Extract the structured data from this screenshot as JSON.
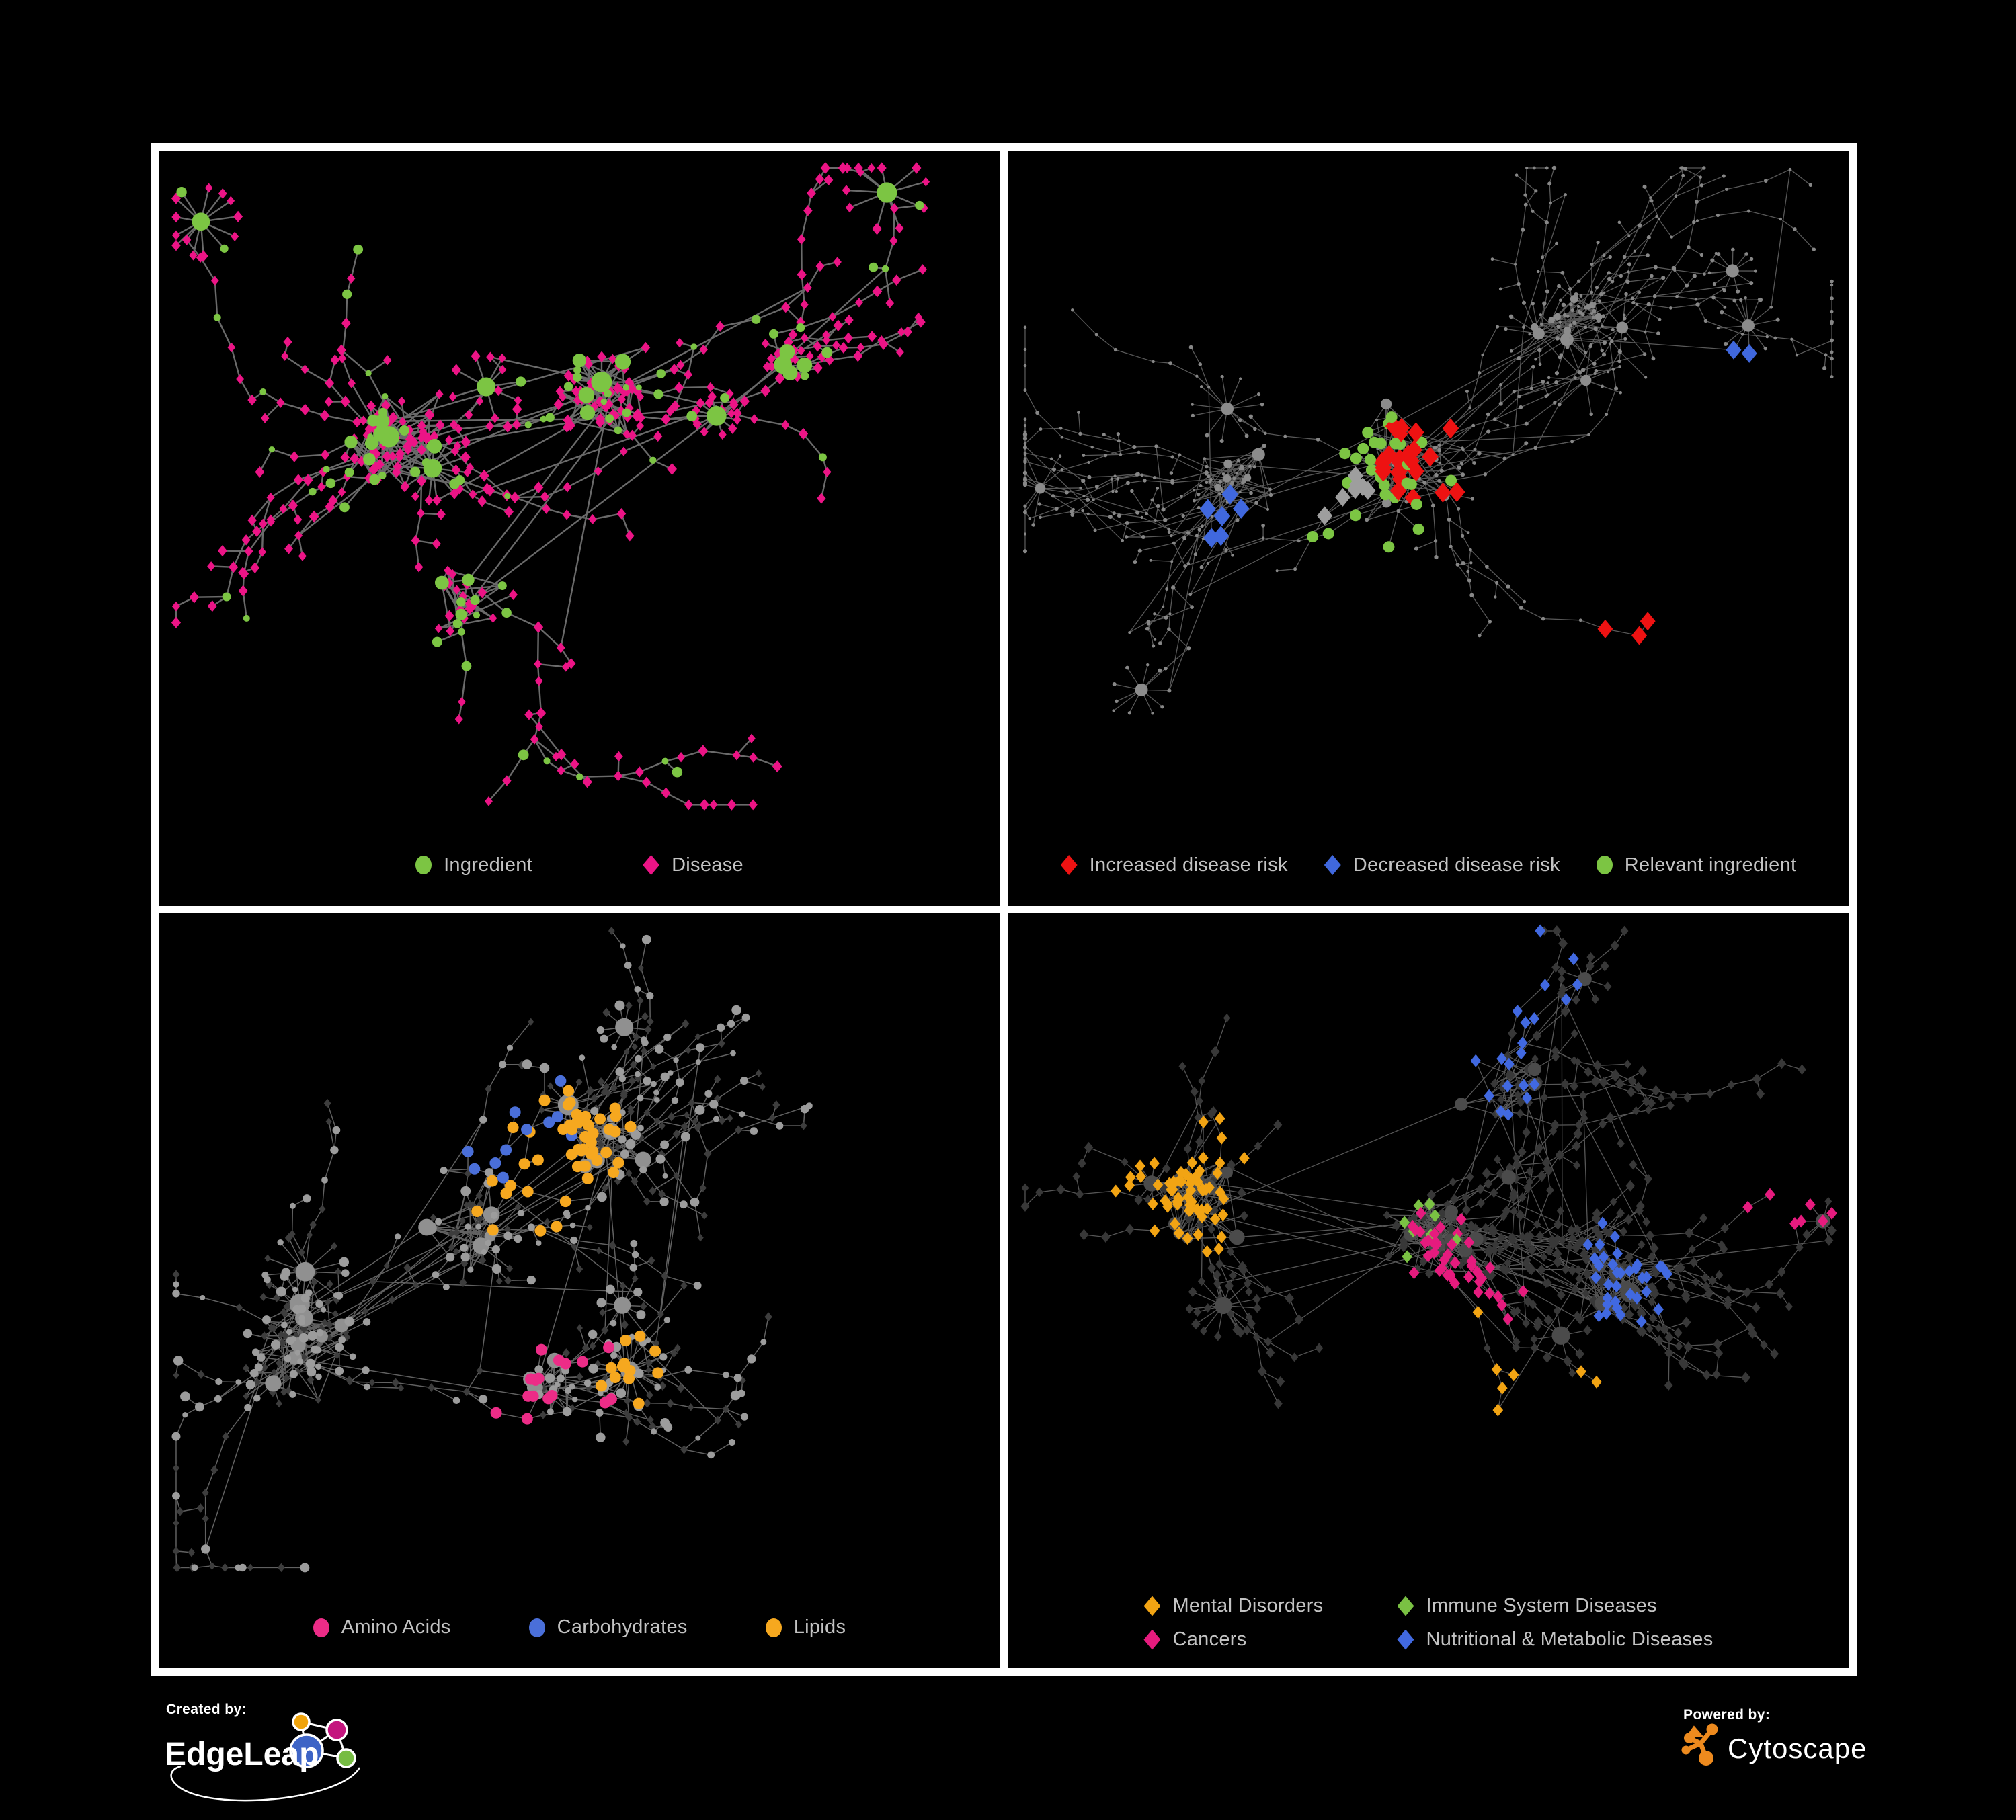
{
  "page": {
    "background": "#000000",
    "frame_border": "#ffffff"
  },
  "panels": [
    {
      "id": "ingredient-disease",
      "legend": [
        {
          "label": "Ingredient",
          "color": "#7CC543",
          "shape": "circle"
        },
        {
          "label": "Disease",
          "color": "#EC1486",
          "shape": "diamond"
        }
      ],
      "network": {
        "seed": 7,
        "nodes": 420,
        "bursts": 7,
        "cross": 30,
        "edge": {
          "color": "#6a6a6a",
          "width": 2.4
        },
        "cores": [
          {
            "f": [
              0.28,
              0.38
            ],
            "n": 55,
            "spread": 0.09
          },
          {
            "f": [
              0.52,
              0.33
            ],
            "n": 40,
            "spread": 0.07
          },
          {
            "f": [
              0.36,
              0.6
            ],
            "n": 28,
            "spread": 0.07
          },
          {
            "f": [
              0.75,
              0.28
            ],
            "n": 22,
            "spread": 0.05
          }
        ],
        "base": [
          {
            "when": "hub",
            "shape": "circle",
            "color": "#7CC543",
            "min": 7,
            "max": 11
          },
          {
            "when": "chance:0.17",
            "shape": "circle",
            "color": "#7CC543",
            "min": 4.5,
            "max": 8
          },
          {
            "when": "default",
            "shape": "diamond",
            "color": "#EC1486",
            "min": 7,
            "max": 9
          }
        ],
        "overlays": []
      }
    },
    {
      "id": "disease-risk",
      "legend": [
        {
          "label": "Increased disease risk",
          "color": "#EE1212",
          "shape": "diamond"
        },
        {
          "label": "Decreased disease risk",
          "color": "#4068DE",
          "shape": "diamond"
        },
        {
          "label": "Relevant ingredient",
          "color": "#7CC543",
          "shape": "circle"
        }
      ],
      "network": {
        "seed": 13,
        "nodes": 560,
        "bursts": 10,
        "cross": 70,
        "edge": {
          "color": "#585858",
          "width": 1.3
        },
        "cores": [
          {
            "f": [
              0.48,
              0.42
            ],
            "n": 60,
            "spread": 0.09
          },
          {
            "f": [
              0.26,
              0.44
            ],
            "n": 40,
            "spread": 0.07
          },
          {
            "f": [
              0.67,
              0.22
            ],
            "n": 30,
            "spread": 0.06
          }
        ],
        "base": [
          {
            "when": "hub",
            "shape": "circle",
            "color": "#8c8c8c",
            "min": 3.5,
            "max": 5
          },
          {
            "when": "default",
            "shape": "circle",
            "color": "#878787",
            "min": 2,
            "max": 3.2
          }
        ],
        "overlays": [
          {
            "shape": "diamond",
            "color": "#EE1212",
            "count": 24,
            "focus": [
              0.47,
              0.4
            ],
            "spread": 0.18,
            "r": 15
          },
          {
            "shape": "diamond",
            "color": "#EE1212",
            "count": 3,
            "focus": [
              0.74,
              0.73
            ],
            "spread": 0.04,
            "r": 14
          },
          {
            "shape": "diamond",
            "color": "#4068DE",
            "count": 6,
            "focus": [
              0.26,
              0.49
            ],
            "spread": 0.07,
            "r": 15
          },
          {
            "shape": "diamond",
            "color": "#4068DE",
            "count": 2,
            "focus": [
              0.86,
              0.33
            ],
            "spread": 0.02,
            "r": 14
          },
          {
            "shape": "diamond",
            "color": "#9e9e9e",
            "count": 7,
            "focus": [
              0.4,
              0.47
            ],
            "spread": 0.14,
            "r": 14
          },
          {
            "shape": "circle",
            "color": "#7CC543",
            "count": 28,
            "focus": [
              0.44,
              0.44
            ],
            "spread": 0.16,
            "r": 8.5
          }
        ]
      }
    },
    {
      "id": "nutrient-classes",
      "legend": [
        {
          "label": "Amino Acids",
          "color": "#EC2C87",
          "shape": "circle"
        },
        {
          "label": "Carbohydrates",
          "color": "#4A6FD9",
          "shape": "circle"
        },
        {
          "label": "Lipids",
          "color": "#F6A81F",
          "shape": "circle"
        }
      ],
      "network": {
        "seed": 23,
        "nodes": 540,
        "bursts": 9,
        "cross": 70,
        "edge": {
          "color": "#616161",
          "width": 1.5
        },
        "cores": [
          {
            "f": [
              0.17,
              0.58
            ],
            "n": 55,
            "spread": 0.09
          },
          {
            "f": [
              0.38,
              0.42
            ],
            "n": 45,
            "spread": 0.08
          },
          {
            "f": [
              0.52,
              0.3
            ],
            "n": 35,
            "spread": 0.07
          },
          {
            "f": [
              0.47,
              0.62
            ],
            "n": 25,
            "spread": 0.06
          }
        ],
        "base": [
          {
            "when": "hub",
            "shape": "circle",
            "color": "#909090",
            "min": 7,
            "max": 11
          },
          {
            "when": "chance:0.45",
            "shape": "circle",
            "color": "#9c9c9c",
            "min": 4,
            "max": 7.5
          },
          {
            "when": "default",
            "shape": "diamond",
            "color": "#3d3d3d",
            "min": 5.5,
            "max": 7
          }
        ],
        "overlays": [
          {
            "shape": "circle",
            "color": "#F6A81F",
            "count": 48,
            "focus": [
              0.47,
              0.32
            ],
            "spread": 0.13,
            "r": 8.5
          },
          {
            "shape": "circle",
            "color": "#F6A81F",
            "count": 12,
            "focus": [
              0.56,
              0.6
            ],
            "spread": 0.12,
            "r": 8.5
          },
          {
            "shape": "circle",
            "color": "#4A6FD9",
            "count": 11,
            "focus": [
              0.43,
              0.29
            ],
            "spread": 0.09,
            "r": 8.5
          },
          {
            "shape": "circle",
            "color": "#EC2C87",
            "count": 16,
            "focus": [
              0.42,
              0.62
            ],
            "spread": 0.42,
            "r": 8.5
          }
        ]
      }
    },
    {
      "id": "disease-classes",
      "legend": [
        {
          "label": "Mental Disorders",
          "color": "#F2A413",
          "shape": "diamond"
        },
        {
          "label": "Immune System Diseases",
          "color": "#7AC143",
          "shape": "diamond"
        },
        {
          "label": "Cancers",
          "color": "#E61B7E",
          "shape": "diamond"
        },
        {
          "label": "Nutritional & Metabolic Diseases",
          "color": "#4169E1",
          "shape": "diamond"
        }
      ],
      "network": {
        "seed": 31,
        "nodes": 580,
        "bursts": 10,
        "cross": 80,
        "edge": {
          "color": "#565656",
          "width": 1.3
        },
        "cores": [
          {
            "f": [
              0.22,
              0.38
            ],
            "n": 55,
            "spread": 0.08
          },
          {
            "f": [
              0.5,
              0.42
            ],
            "n": 55,
            "spread": 0.09
          },
          {
            "f": [
              0.72,
              0.5
            ],
            "n": 35,
            "spread": 0.07
          },
          {
            "f": [
              0.6,
              0.22
            ],
            "n": 25,
            "spread": 0.07
          }
        ],
        "base": [
          {
            "when": "hub",
            "shape": "circle",
            "color": "#4b4b4b",
            "min": 6,
            "max": 10
          },
          {
            "when": "default",
            "shape": "diamond",
            "color": "#383838",
            "min": 6.5,
            "max": 8.5
          }
        ],
        "overlays": [
          {
            "shape": "diamond",
            "color": "#F2A413",
            "count": 66,
            "focus": [
              0.22,
              0.37
            ],
            "spread": 0.11,
            "r": 9.5
          },
          {
            "shape": "diamond",
            "color": "#F2A413",
            "count": 7,
            "focus": [
              0.55,
              0.8
            ],
            "spread": 0.18,
            "r": 9.5
          },
          {
            "shape": "diamond",
            "color": "#E61B7E",
            "count": 40,
            "focus": [
              0.5,
              0.52
            ],
            "spread": 0.12,
            "r": 9.5
          },
          {
            "shape": "diamond",
            "color": "#E61B7E",
            "count": 7,
            "focus": [
              0.93,
              0.36
            ],
            "spread": 0.05,
            "r": 9.5
          },
          {
            "shape": "diamond",
            "color": "#4169E1",
            "count": 34,
            "focus": [
              0.73,
              0.48
            ],
            "spread": 0.14,
            "r": 9.5
          },
          {
            "shape": "diamond",
            "color": "#4169E1",
            "count": 20,
            "focus": [
              0.52,
              0.13
            ],
            "spread": 0.25,
            "r": 9.5
          },
          {
            "shape": "diamond",
            "color": "#7AC143",
            "count": 8,
            "focus": [
              0.5,
              0.42
            ],
            "spread": 0.22,
            "r": 9.5
          }
        ]
      }
    }
  ],
  "footer": {
    "created_by": {
      "label": "Created by:",
      "brand": "EdgeLeap"
    },
    "powered_by": {
      "label": "Powered by:",
      "brand": "Cytoscape"
    },
    "edgeleap_colors": {
      "orange": "#F0A30A",
      "magenta": "#C4157E",
      "blue": "#3D64C6",
      "green": "#76BC43"
    },
    "cytoscape_color": "#ED8A1E"
  }
}
